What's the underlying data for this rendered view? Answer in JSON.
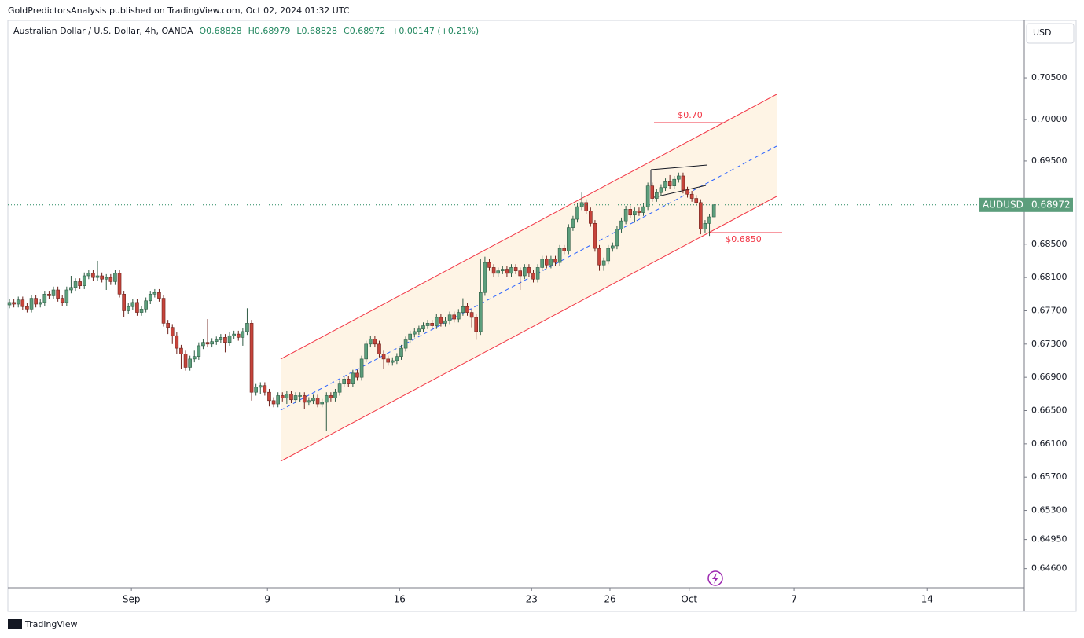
{
  "header": {
    "published": "GoldPredictorsAnalysis published on TradingView.com, Oct 02, 2024 01:32 UTC",
    "currency": "USD",
    "brand": "TradingView"
  },
  "chart_data": {
    "type": "candlestick",
    "title": "Australian Dollar / U.S. Dollar, 4h, OANDA",
    "ohlc_readout": [
      "O0.68828",
      "H0.68979",
      "L0.68828",
      "C0.68972",
      "+0.00147 (+0.21%)"
    ],
    "symbol": "AUDUSD",
    "last_price": 0.68972,
    "annotations": [
      "$0.70",
      "$0.6850"
    ],
    "up_color": "#5c9e7c",
    "down_color": "#c6443b",
    "xlim": [
      -0.36,
      230.5
    ],
    "ylim": [
      0.6437,
      0.7119
    ],
    "xticks": [
      {
        "value": 27.7,
        "label": "Sep"
      },
      {
        "value": 58.6,
        "label": "9"
      },
      {
        "value": 88.6,
        "label": "16"
      },
      {
        "value": 118.6,
        "label": "23"
      },
      {
        "value": 136.4,
        "label": "26"
      },
      {
        "value": 154.4,
        "label": "Oct"
      },
      {
        "value": 178.2,
        "label": "7"
      },
      {
        "value": 208.4,
        "label": "14"
      }
    ],
    "yticks": [
      {
        "value": 0.705,
        "label": "0.70500"
      },
      {
        "value": 0.7,
        "label": "0.70000"
      },
      {
        "value": 0.695,
        "label": "0.69500"
      },
      {
        "value": 0.685,
        "label": "0.68500"
      },
      {
        "value": 0.681,
        "label": "0.68100"
      },
      {
        "value": 0.677,
        "label": "0.67700"
      },
      {
        "value": 0.673,
        "label": "0.67300"
      },
      {
        "value": 0.669,
        "label": "0.66900"
      },
      {
        "value": 0.665,
        "label": "0.66500"
      },
      {
        "value": 0.661,
        "label": "0.66100"
      },
      {
        "value": 0.657,
        "label": "0.65700"
      },
      {
        "value": 0.653,
        "label": "0.65300"
      },
      {
        "value": 0.6495,
        "label": "0.64950"
      },
      {
        "value": 0.646,
        "label": "0.64600"
      }
    ],
    "open": [
      0.6777,
      0.678,
      0.6778,
      0.6783,
      0.6775,
      0.6772,
      0.6785,
      0.6778,
      0.678,
      0.679,
      0.6788,
      0.6795,
      0.6785,
      0.678,
      0.6795,
      0.6798,
      0.6805,
      0.68,
      0.6812,
      0.6815,
      0.681,
      0.6812,
      0.6808,
      0.681,
      0.6805,
      0.6815,
      0.679,
      0.677,
      0.6775,
      0.678,
      0.6768,
      0.6772,
      0.6782,
      0.679,
      0.6792,
      0.6785,
      0.6755,
      0.675,
      0.674,
      0.6725,
      0.6718,
      0.6702,
      0.6712,
      0.6715,
      0.6728,
      0.6732,
      0.673,
      0.6733,
      0.6735,
      0.6738,
      0.6732,
      0.674,
      0.6742,
      0.6738,
      0.6745,
      0.6755,
      0.6672,
      0.6678,
      0.668,
      0.6672,
      0.6662,
      0.6658,
      0.6668,
      0.6665,
      0.667,
      0.6663,
      0.6668,
      0.6668,
      0.666,
      0.6662,
      0.6665,
      0.6658,
      0.666,
      0.6668,
      0.6665,
      0.6672,
      0.6682,
      0.6688,
      0.6682,
      0.6695,
      0.669,
      0.6712,
      0.673,
      0.6736,
      0.673,
      0.6718,
      0.6712,
      0.6708,
      0.671,
      0.6715,
      0.6725,
      0.6735,
      0.6742,
      0.6745,
      0.6748,
      0.6752,
      0.6755,
      0.6752,
      0.6762,
      0.6755,
      0.6758,
      0.6765,
      0.676,
      0.6768,
      0.6775,
      0.6768,
      0.6762,
      0.6745,
      0.6792,
      0.6828,
      0.6822,
      0.6815,
      0.6818,
      0.682,
      0.6815,
      0.6822,
      0.6818,
      0.6812,
      0.6822,
      0.6815,
      0.6808,
      0.6822,
      0.6832,
      0.6825,
      0.6832,
      0.6828,
      0.6845,
      0.6842,
      0.687,
      0.688,
      0.6895,
      0.69,
      0.689,
      0.6875,
      0.6845,
      0.6825,
      0.683,
      0.6845,
      0.6848,
      0.6868,
      0.6878,
      0.6892,
      0.6885,
      0.689,
      0.6888,
      0.6895,
      0.692,
      0.6905,
      0.6912,
      0.6918,
      0.6925,
      0.692,
      0.6928,
      0.6932,
      0.6915,
      0.691,
      0.6905,
      0.69,
      0.6868,
      0.6875,
      0.68828
    ],
    "high": [
      0.6784,
      0.6784,
      0.6787,
      0.6787,
      0.6779,
      0.6789,
      0.6789,
      0.6784,
      0.6794,
      0.6794,
      0.6799,
      0.6799,
      0.6789,
      0.6799,
      0.6812,
      0.6809,
      0.6809,
      0.6816,
      0.6819,
      0.6819,
      0.683,
      0.6816,
      0.6814,
      0.6814,
      0.6819,
      0.6819,
      0.6794,
      0.6779,
      0.6784,
      0.6784,
      0.6776,
      0.6786,
      0.6794,
      0.6796,
      0.6796,
      0.6789,
      0.6759,
      0.6754,
      0.6744,
      0.6729,
      0.6722,
      0.6716,
      0.6722,
      0.6732,
      0.6736,
      0.676,
      0.6737,
      0.6739,
      0.6742,
      0.6742,
      0.6744,
      0.6746,
      0.6746,
      0.6749,
      0.6773,
      0.6759,
      0.6682,
      0.6684,
      0.6684,
      0.6676,
      0.6666,
      0.6672,
      0.6672,
      0.6674,
      0.6674,
      0.6672,
      0.6672,
      0.6672,
      0.6666,
      0.6669,
      0.6669,
      0.6664,
      0.6672,
      0.6672,
      0.6676,
      0.6686,
      0.6692,
      0.6692,
      0.6699,
      0.6699,
      0.6716,
      0.6734,
      0.674,
      0.674,
      0.6734,
      0.6722,
      0.6716,
      0.6714,
      0.6719,
      0.6729,
      0.6739,
      0.6746,
      0.6749,
      0.6752,
      0.6756,
      0.6759,
      0.6759,
      0.6766,
      0.6766,
      0.6762,
      0.6769,
      0.6769,
      0.6772,
      0.6785,
      0.6779,
      0.6772,
      0.6766,
      0.6832,
      0.6835,
      0.6832,
      0.6826,
      0.6822,
      0.6824,
      0.6824,
      0.6826,
      0.6826,
      0.6822,
      0.6826,
      0.6826,
      0.6819,
      0.6826,
      0.6836,
      0.6836,
      0.6836,
      0.6836,
      0.6849,
      0.6849,
      0.6874,
      0.6884,
      0.6899,
      0.6912,
      0.6904,
      0.6894,
      0.6879,
      0.6849,
      0.6834,
      0.6849,
      0.6852,
      0.6872,
      0.6882,
      0.6896,
      0.6896,
      0.6894,
      0.6894,
      0.6899,
      0.6924,
      0.6924,
      0.6916,
      0.6922,
      0.6929,
      0.6933,
      0.6932,
      0.6936,
      0.6936,
      0.6919,
      0.6914,
      0.6909,
      0.6904,
      0.6879,
      0.6886,
      0.68979
    ],
    "low": [
      0.6773,
      0.6774,
      0.6774,
      0.6771,
      0.6768,
      0.6768,
      0.6774,
      0.6774,
      0.6776,
      0.6784,
      0.6784,
      0.6781,
      0.6776,
      0.6776,
      0.6791,
      0.6794,
      0.6796,
      0.6796,
      0.6808,
      0.6806,
      0.6806,
      0.6804,
      0.6795,
      0.6801,
      0.6801,
      0.6786,
      0.6762,
      0.6766,
      0.6771,
      0.6764,
      0.6764,
      0.6768,
      0.6778,
      0.6786,
      0.6781,
      0.6751,
      0.6742,
      0.673,
      0.6718,
      0.67,
      0.6698,
      0.6698,
      0.6708,
      0.6711,
      0.6724,
      0.6726,
      0.6726,
      0.6729,
      0.6731,
      0.672,
      0.6728,
      0.6736,
      0.6734,
      0.6728,
      0.6741,
      0.6662,
      0.6668,
      0.667,
      0.6668,
      0.6655,
      0.6654,
      0.6654,
      0.6661,
      0.6658,
      0.6659,
      0.6659,
      0.666,
      0.6652,
      0.6656,
      0.6658,
      0.6654,
      0.6654,
      0.6625,
      0.6661,
      0.6661,
      0.6668,
      0.6678,
      0.6678,
      0.6678,
      0.6686,
      0.6686,
      0.6708,
      0.6726,
      0.6726,
      0.6714,
      0.67,
      0.6704,
      0.6704,
      0.6706,
      0.6711,
      0.6721,
      0.6731,
      0.6738,
      0.6741,
      0.6744,
      0.6748,
      0.6748,
      0.6748,
      0.6751,
      0.6751,
      0.6754,
      0.6756,
      0.6756,
      0.6764,
      0.6764,
      0.675,
      0.6735,
      0.6741,
      0.6788,
      0.6818,
      0.6811,
      0.6811,
      0.6814,
      0.6811,
      0.6811,
      0.6814,
      0.6795,
      0.6808,
      0.6811,
      0.6804,
      0.6804,
      0.6818,
      0.6821,
      0.6821,
      0.6824,
      0.6824,
      0.6838,
      0.6838,
      0.6866,
      0.6876,
      0.6891,
      0.6886,
      0.6871,
      0.6841,
      0.6818,
      0.6818,
      0.6826,
      0.6841,
      0.6844,
      0.6864,
      0.6874,
      0.6881,
      0.6876,
      0.6884,
      0.6884,
      0.6891,
      0.6901,
      0.6901,
      0.6908,
      0.6914,
      0.6916,
      0.6916,
      0.6924,
      0.6911,
      0.6906,
      0.6901,
      0.6896,
      0.6862,
      0.6864,
      0.686,
      0.68828
    ],
    "close": [
      0.678,
      0.6778,
      0.6783,
      0.6775,
      0.6772,
      0.6785,
      0.6778,
      0.678,
      0.679,
      0.6788,
      0.6795,
      0.6785,
      0.678,
      0.6795,
      0.6798,
      0.6805,
      0.68,
      0.6812,
      0.6815,
      0.681,
      0.6812,
      0.6808,
      0.681,
      0.6805,
      0.6815,
      0.679,
      0.677,
      0.6775,
      0.678,
      0.6768,
      0.6772,
      0.6782,
      0.679,
      0.6792,
      0.6785,
      0.6755,
      0.675,
      0.674,
      0.6725,
      0.6718,
      0.6702,
      0.6712,
      0.6715,
      0.6728,
      0.6732,
      0.673,
      0.6733,
      0.6735,
      0.6738,
      0.6732,
      0.674,
      0.6742,
      0.6738,
      0.6745,
      0.6755,
      0.6672,
      0.6678,
      0.668,
      0.6672,
      0.6662,
      0.6658,
      0.6668,
      0.6665,
      0.667,
      0.6663,
      0.6668,
      0.6668,
      0.666,
      0.6662,
      0.6665,
      0.6658,
      0.666,
      0.6668,
      0.6665,
      0.6672,
      0.6682,
      0.6688,
      0.6682,
      0.6695,
      0.669,
      0.6712,
      0.673,
      0.6736,
      0.673,
      0.6718,
      0.6712,
      0.6708,
      0.671,
      0.6715,
      0.6725,
      0.6735,
      0.6742,
      0.6745,
      0.6748,
      0.6752,
      0.6755,
      0.6752,
      0.6762,
      0.6755,
      0.6758,
      0.6765,
      0.676,
      0.6768,
      0.6775,
      0.6768,
      0.6762,
      0.6745,
      0.6792,
      0.6828,
      0.6822,
      0.6815,
      0.6818,
      0.682,
      0.6815,
      0.6822,
      0.6818,
      0.6812,
      0.6822,
      0.6815,
      0.6808,
      0.6822,
      0.6832,
      0.6825,
      0.6832,
      0.6828,
      0.6845,
      0.6842,
      0.687,
      0.688,
      0.6895,
      0.69,
      0.689,
      0.6875,
      0.6845,
      0.6825,
      0.683,
      0.6845,
      0.6848,
      0.6868,
      0.6878,
      0.6892,
      0.6885,
      0.689,
      0.6888,
      0.6895,
      0.692,
      0.6905,
      0.6912,
      0.6918,
      0.6925,
      0.692,
      0.6928,
      0.6932,
      0.6915,
      0.691,
      0.6905,
      0.69,
      0.6868,
      0.6875,
      0.68828,
      0.68972
    ]
  }
}
